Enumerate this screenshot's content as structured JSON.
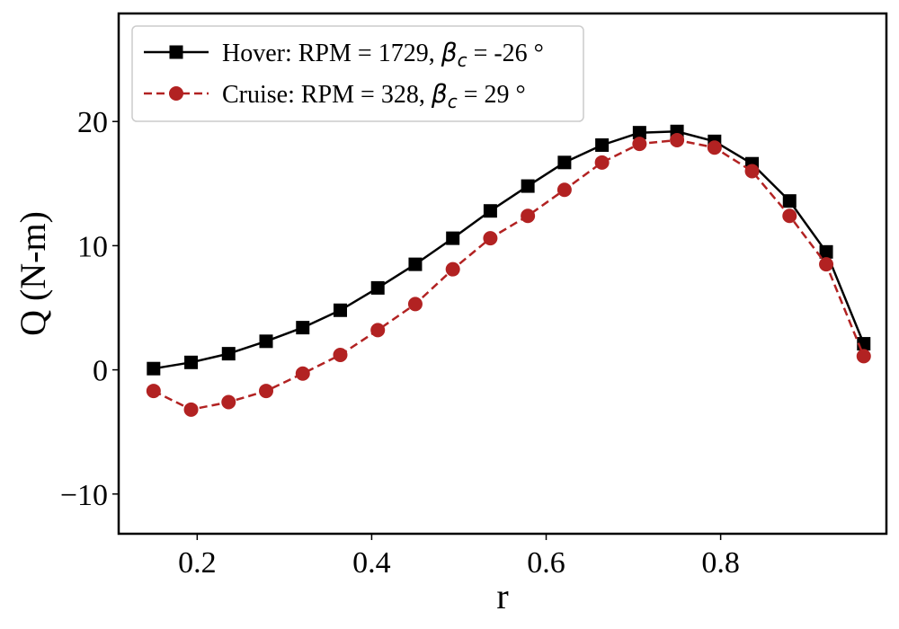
{
  "chart_data": {
    "type": "line",
    "xlabel": "r",
    "ylabel": "Q (N-m)",
    "xlim": [
      0.11,
      0.99
    ],
    "ylim": [
      -13.2,
      28.7
    ],
    "xticks": [
      0.2,
      0.4,
      0.6,
      0.8
    ],
    "xtick_labels": [
      "0.2",
      "0.4",
      "0.6",
      "0.8"
    ],
    "yticks": [
      -10,
      0,
      10,
      20
    ],
    "ytick_labels": [
      "−10",
      "0",
      "10",
      "20"
    ],
    "grid": false,
    "legend_position": "top-left",
    "series": [
      {
        "name": "Hover: RPM = 1729, βc = -26 °",
        "legend": {
          "prefix": "Hover: RPM = 1729, ",
          "beta": "β",
          "sub": "c",
          "suffix": " = -26 °"
        },
        "color": "#000000",
        "line_style": "solid",
        "marker": "square",
        "x": [
          0.15,
          0.193,
          0.236,
          0.279,
          0.321,
          0.364,
          0.407,
          0.45,
          0.493,
          0.536,
          0.579,
          0.621,
          0.664,
          0.707,
          0.75,
          0.793,
          0.836,
          0.879,
          0.921,
          0.964
        ],
        "y": [
          0.1,
          0.6,
          1.3,
          2.3,
          3.4,
          4.8,
          6.6,
          8.5,
          10.6,
          12.8,
          14.8,
          16.7,
          18.1,
          19.1,
          19.2,
          18.4,
          16.6,
          13.6,
          9.5,
          2.1
        ]
      },
      {
        "name": "Cruise: RPM = 328, βc = 29 °",
        "legend": {
          "prefix": "Cruise: RPM = 328, ",
          "beta": "β",
          "sub": "c",
          "suffix": " = 29 °"
        },
        "color": "#b22222",
        "line_style": "dashed",
        "marker": "circle",
        "x": [
          0.15,
          0.193,
          0.236,
          0.279,
          0.321,
          0.364,
          0.407,
          0.45,
          0.493,
          0.536,
          0.579,
          0.621,
          0.664,
          0.707,
          0.75,
          0.793,
          0.836,
          0.879,
          0.921,
          0.964
        ],
        "y": [
          -1.7,
          -3.2,
          -2.6,
          -1.7,
          -0.3,
          1.2,
          3.2,
          5.3,
          8.1,
          10.6,
          12.4,
          14.5,
          16.7,
          18.2,
          18.5,
          17.9,
          16.0,
          12.4,
          8.5,
          1.1
        ]
      }
    ]
  }
}
